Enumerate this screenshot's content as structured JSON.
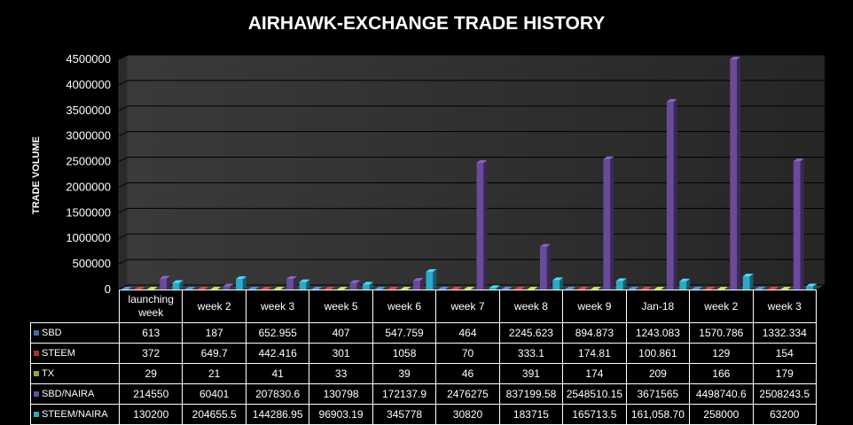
{
  "chart_data": {
    "type": "bar",
    "title": "AIRHAWK-EXCHANGE TRADE HISTORY",
    "ylabel": "TRADE VOLUME",
    "xlabel": "",
    "ylim": [
      0,
      4500000
    ],
    "y_ticks": [
      "0",
      "500000",
      "1000000",
      "1500000",
      "2000000",
      "2500000",
      "3000000",
      "3500000",
      "4000000",
      "4500000"
    ],
    "grid": true,
    "legend_placement": "table-below",
    "categories": [
      "launching week",
      "week 2",
      "week 3",
      "week 5",
      "week 6",
      "week 7",
      "week 8",
      "week 9",
      "Jan-18",
      "week 2",
      "week 3"
    ],
    "series": [
      {
        "name": "SBD",
        "color": "#3a6fb0",
        "values": [
          613,
          187,
          652.955,
          407,
          547.759,
          464,
          2245.623,
          894.873,
          1243.083,
          1570.786,
          1332.334
        ],
        "labels": [
          "613",
          "187",
          "652.955",
          "407",
          "547.759",
          "464",
          "2245.623",
          "894.873",
          "1243.083",
          "1570.786",
          "1332.334"
        ]
      },
      {
        "name": "STEEM",
        "color": "#b03030",
        "values": [
          372,
          649.7,
          442.416,
          301,
          1058,
          70,
          333.1,
          174.81,
          100.861,
          129,
          154
        ],
        "labels": [
          "372",
          "649.7",
          "442.416",
          "301",
          "1058",
          "70",
          "333.1",
          "174.81",
          "100.861",
          "129",
          "154"
        ]
      },
      {
        "name": "TX",
        "color": "#8faa3a",
        "values": [
          29,
          21,
          41,
          33,
          39,
          46,
          391,
          174,
          209,
          166,
          179
        ],
        "labels": [
          "29",
          "21",
          "41",
          "33",
          "39",
          "46",
          "391",
          "174",
          "209",
          "166",
          "179"
        ]
      },
      {
        "name": "SBD/NAIRA",
        "color": "#6a4a9a",
        "values": [
          214550,
          60401,
          207830.6,
          130798,
          172137.9,
          2476275,
          837199.58,
          2548510.15,
          3671565,
          4498740.6,
          2508243.5
        ],
        "labels": [
          "214550",
          "60401",
          "207830.6",
          "130798",
          "172137.9",
          "2476275",
          "837199.58",
          "2548510.15",
          "3671565",
          "4498740.6",
          "2508243.5"
        ]
      },
      {
        "name": "STEEM/NAIRA",
        "color": "#2ea8c8",
        "values": [
          130200,
          204655.5,
          144286.95,
          96903.19,
          345778,
          30820,
          183715,
          165713.5,
          161058.7,
          258000,
          63200
        ],
        "labels": [
          "130200",
          "204655.5",
          "144286.95",
          "96903.19",
          "345778",
          "30820",
          "183715",
          "165713.5",
          "161,058.70",
          "258000",
          "63200"
        ]
      }
    ]
  }
}
